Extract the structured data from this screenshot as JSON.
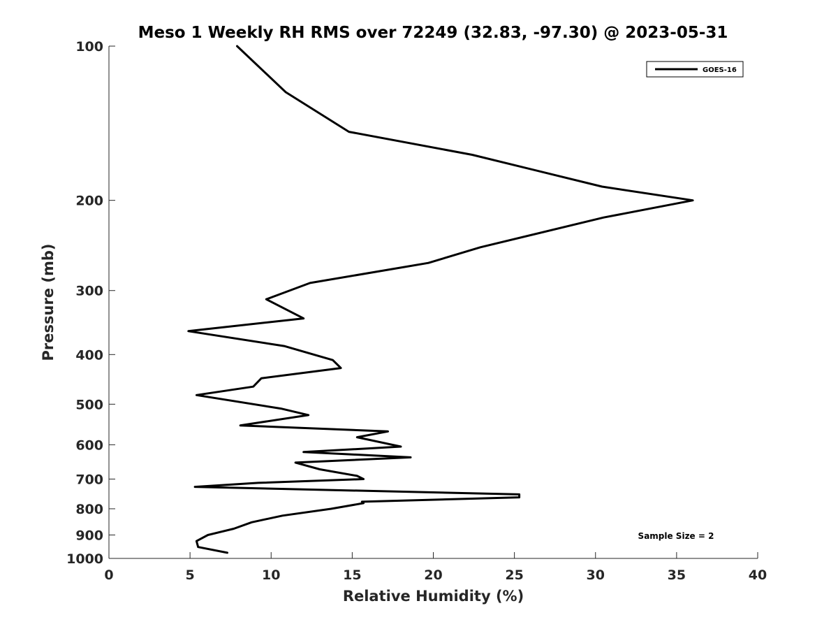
{
  "chart_data": {
    "type": "line",
    "title": "Meso 1 Weekly RH RMS over 72249 (32.83, -97.30) @ 2023-05-31",
    "xlabel": "Relative Humidity (%)",
    "ylabel": "Pressure (mb)",
    "xlim": [
      0,
      40
    ],
    "ylim": [
      1000,
      100
    ],
    "y_scale": "log",
    "y_reversed": true,
    "x_ticks": [
      "0",
      "5",
      "10",
      "15",
      "20",
      "25",
      "30",
      "35",
      "40"
    ],
    "y_ticks": [
      "100",
      "200",
      "300",
      "400",
      "500",
      "600",
      "700",
      "800",
      "900",
      "1000"
    ],
    "grid": false,
    "legend_position": "top-right",
    "series": [
      {
        "name": "GOES-16",
        "color": "#000000",
        "x": [
          7.3,
          5.5,
          5.4,
          6.1,
          7.7,
          8.8,
          10.7,
          13.7,
          15.7,
          15.6,
          25.3,
          25.3,
          5.3,
          9.2,
          15.7,
          15.3,
          13.0,
          11.5,
          18.6,
          12.0,
          18.0,
          15.3,
          17.2,
          8.1,
          12.3,
          10.6,
          5.4,
          8.9,
          9.4,
          14.3,
          13.8,
          10.8,
          4.9,
          12.0,
          9.7,
          12.4,
          19.7,
          22.9,
          30.5,
          36.0,
          30.4,
          22.4,
          14.8,
          10.9,
          7.9
        ],
        "y": [
          975,
          950,
          925,
          900,
          875,
          850,
          825,
          800,
          780,
          775,
          760,
          750,
          725,
          712,
          700,
          690,
          670,
          650,
          635,
          620,
          605,
          580,
          565,
          550,
          525,
          510,
          480,
          462,
          445,
          425,
          410,
          385,
          360,
          340,
          312,
          290,
          265,
          247,
          216,
          200,
          188,
          163,
          147,
          123,
          100
        ]
      }
    ],
    "annotations": [
      {
        "text": "Sample Size = 2",
        "position": "bottom-right"
      }
    ]
  }
}
